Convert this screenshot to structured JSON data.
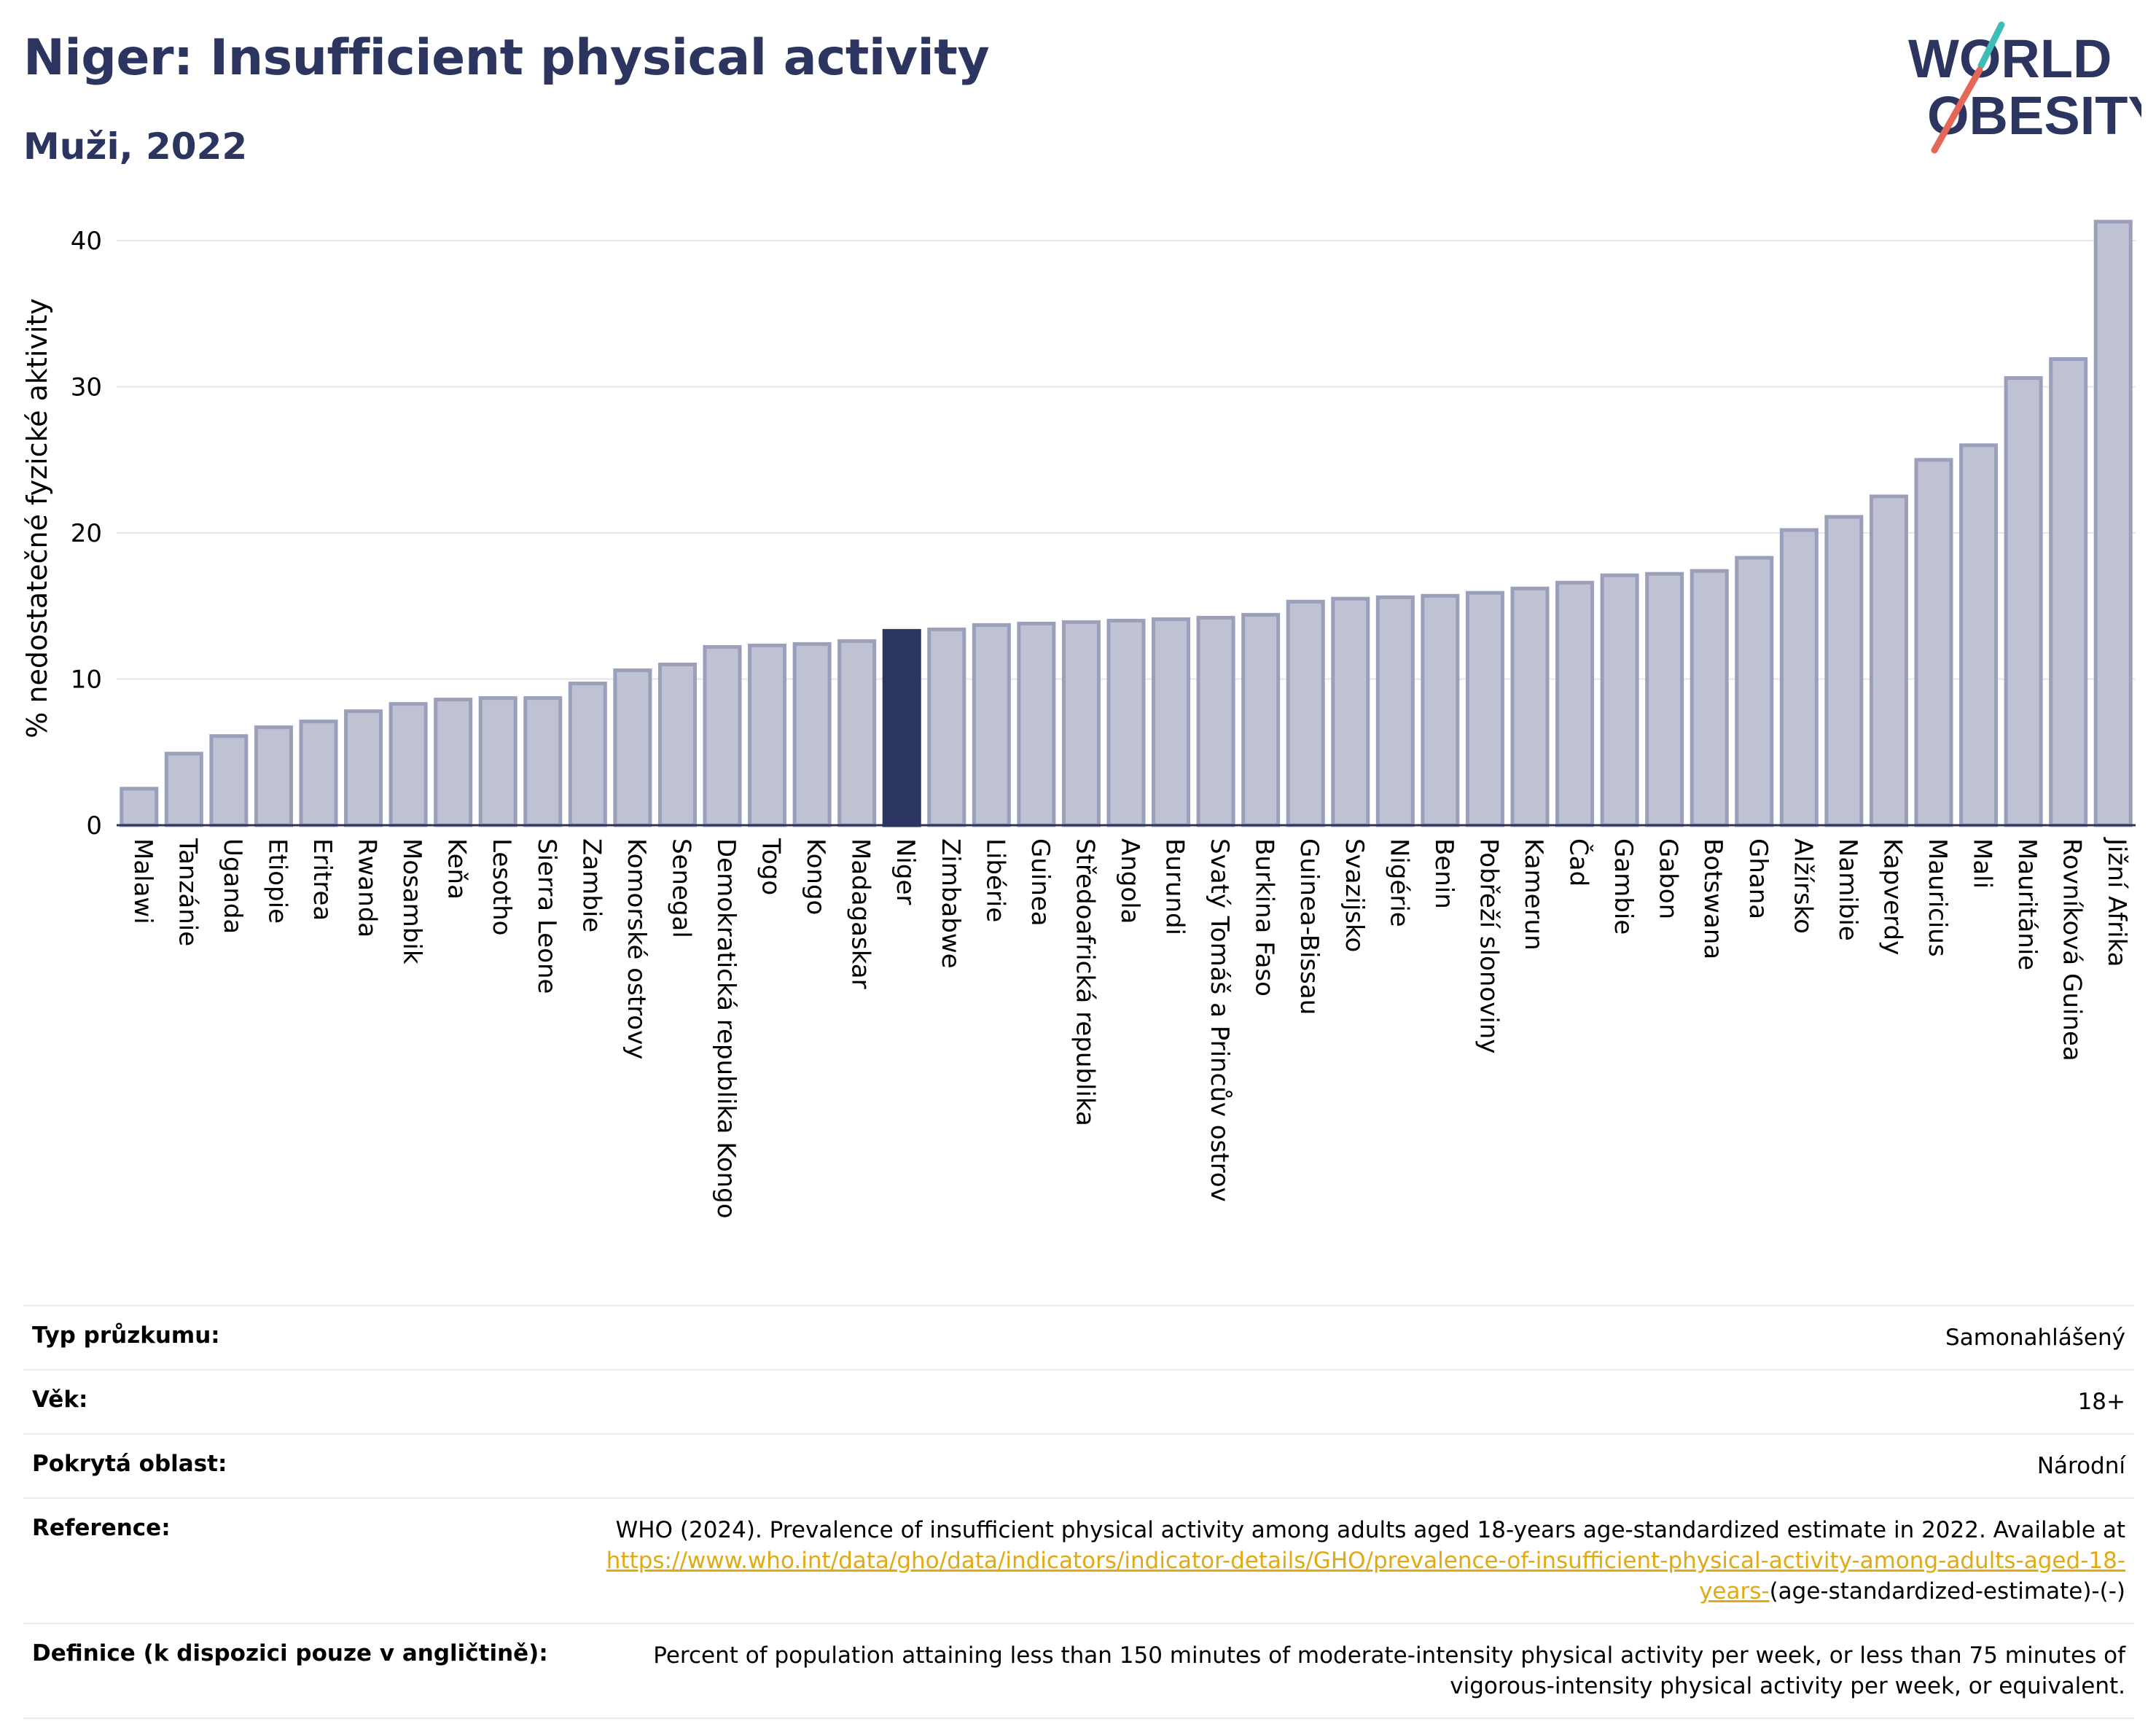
{
  "header": {
    "title": "Niger: Insufficient physical activity",
    "subtitle": "Muži, 2022"
  },
  "logo": {
    "line1": "WORLD",
    "line2": "OBESITY"
  },
  "colors": {
    "bar": "#bfc2d2",
    "bar_border": "#9a9fbb",
    "highlight": "#2b3560",
    "title": "#2b3560"
  },
  "chart_data": {
    "type": "bar",
    "title": "Niger: Insufficient physical activity",
    "subtitle": "Muži, 2022",
    "xlabel": "",
    "ylabel": "% nedostatečné fyzické aktivity",
    "ylim": [
      0,
      42
    ],
    "yticks": [
      0,
      10,
      20,
      30,
      40
    ],
    "grid": true,
    "highlight": "Niger",
    "categories": [
      "Malawi",
      "Tanzánie",
      "Uganda",
      "Etiopie",
      "Eritrea",
      "Rwanda",
      "Mosambik",
      "Keňa",
      "Lesotho",
      "Sierra Leone",
      "Zambie",
      "Komorské ostrovy",
      "Senegal",
      "Demokratická republika Kongo",
      "Togo",
      "Kongo",
      "Madagaskar",
      "Niger",
      "Zimbabwe",
      "Libérie",
      "Guinea",
      "Středoafrická republika",
      "Angola",
      "Burundi",
      "Svatý Tomáš a Princův ostrov",
      "Burkina Faso",
      "Guinea-Bissau",
      "Svazijsko",
      "Nigérie",
      "Benin",
      "Pobřeží slonoviny",
      "Kamerun",
      "Čad",
      "Gambie",
      "Gabon",
      "Botswana",
      "Ghana",
      "Alžírsko",
      "Namibie",
      "Kapverdy",
      "Mauricius",
      "Mali",
      "Mauritánie",
      "Rovníková Guinea",
      "Jižní Afrika"
    ],
    "values": [
      2.5,
      4.9,
      6.1,
      6.7,
      7.1,
      7.8,
      8.3,
      8.6,
      8.7,
      8.7,
      9.7,
      10.6,
      11.0,
      12.2,
      12.3,
      12.4,
      12.6,
      13.3,
      13.4,
      13.7,
      13.8,
      13.9,
      14.0,
      14.1,
      14.2,
      14.4,
      15.3,
      15.5,
      15.6,
      15.7,
      15.9,
      16.2,
      16.6,
      17.1,
      17.2,
      17.4,
      18.3,
      20.2,
      21.1,
      22.5,
      25.0,
      26.0,
      30.6,
      31.9,
      41.3
    ]
  },
  "info": {
    "survey_type_label": "Typ průzkumu:",
    "survey_type_value": "Samonahlášený",
    "age_label": "Věk:",
    "age_value": "18+",
    "coverage_label": "Pokrytá oblast:",
    "coverage_value": "Národní",
    "reference_label": "Reference:",
    "reference_text": "WHO (2024). Prevalence of insufficient physical activity among adults aged 18-years age-standardized estimate in 2022. Available at",
    "reference_link": "https://www.who.int/data/gho/data/indicators/indicator-details/GHO/prevalence-of-insufficient-physical-activity-among-adults-aged-18-years-",
    "reference_suffix": "(age-standardized-estimate)-(-)",
    "definition_label": "Definice (k dispozici pouze v angličtině):",
    "definition_text": "Percent of population attaining less than 150 minutes of moderate-intensity physical activity per week, or less than 75 minutes of vigorous-intensity physical activity per week, or equivalent."
  }
}
